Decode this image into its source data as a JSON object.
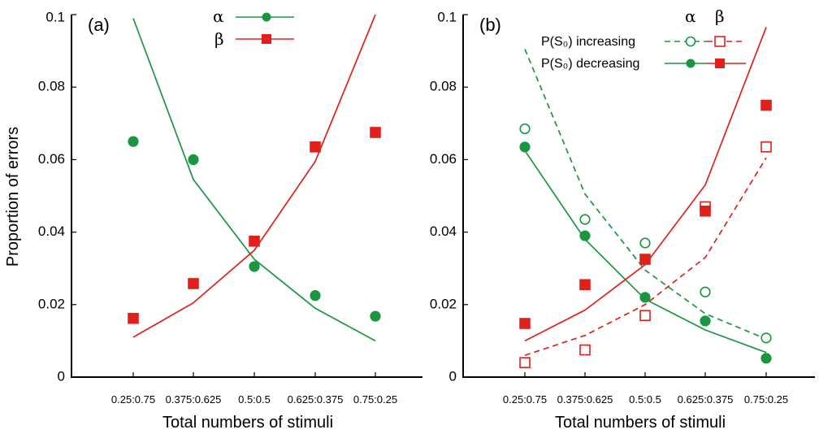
{
  "y_axis_title": "Proportion of errors",
  "y_tick_labels": [
    "0",
    "0.02",
    "0.04",
    "0.06",
    "0.08",
    "0.1"
  ],
  "colors": {
    "alpha": "#1a9640",
    "beta": "#e0201b"
  },
  "chart_data": [
    {
      "type": "line",
      "panel_label": "(a)",
      "xlabel": "Total numbers of stimuli",
      "ylabel": "Proportion of errors",
      "ylim": [
        0,
        0.1
      ],
      "categories": [
        "0.25:0.75",
        "0.375:0.625",
        "0.5:0.5",
        "0.625:0.375",
        "0.75:0.25"
      ],
      "legend": {
        "alpha": "α",
        "beta": "β",
        "placement": "top-center"
      },
      "series": [
        {
          "name": "α fit",
          "kind": "line",
          "style": "solid",
          "color": "alpha",
          "values": [
            0.099,
            0.0545,
            0.0325,
            0.019,
            0.01
          ]
        },
        {
          "name": "β fit",
          "kind": "line",
          "style": "solid",
          "color": "beta",
          "values": [
            0.011,
            0.0205,
            0.035,
            0.0595,
            0.1
          ]
        },
        {
          "name": "α data",
          "kind": "points",
          "marker": "circle",
          "filled": true,
          "color": "alpha",
          "values": [
            0.065,
            0.06,
            0.0305,
            0.0225,
            0.0168
          ]
        },
        {
          "name": "β data",
          "kind": "points",
          "marker": "square",
          "filled": true,
          "color": "beta",
          "values": [
            0.0162,
            0.0258,
            0.0375,
            0.0635,
            0.0675
          ]
        }
      ]
    },
    {
      "type": "line",
      "panel_label": "(b)",
      "xlabel": "Total numbers of stimuli",
      "ylabel": "Proportion of errors",
      "ylim": [
        0,
        0.1
      ],
      "categories": [
        "0.25:0.75",
        "0.375:0.625",
        "0.5:0.5",
        "0.625:0.375",
        "0.75:0.25"
      ],
      "legend": {
        "alpha": "α",
        "beta": "β",
        "increasing": "P(S₀) increasing",
        "decreasing": "P(S₀) decreasing",
        "placement": "top-center"
      },
      "series": [
        {
          "name": "α increasing fit",
          "kind": "line",
          "style": "dashed",
          "color": "alpha",
          "values": [
            0.0905,
            0.0505,
            0.0295,
            0.0175,
            0.0105
          ]
        },
        {
          "name": "β increasing fit",
          "kind": "line",
          "style": "dashed",
          "color": "beta",
          "values": [
            0.006,
            0.0115,
            0.02,
            0.033,
            0.0605
          ]
        },
        {
          "name": "α decreasing fit",
          "kind": "line",
          "style": "solid",
          "color": "alpha",
          "values": [
            0.0625,
            0.038,
            0.0215,
            0.013,
            0.0068
          ]
        },
        {
          "name": "β decreasing fit",
          "kind": "line",
          "style": "solid",
          "color": "beta",
          "values": [
            0.01,
            0.0185,
            0.031,
            0.053,
            0.0965
          ]
        },
        {
          "name": "α increasing data",
          "kind": "points",
          "marker": "circle",
          "filled": false,
          "color": "alpha",
          "values": [
            0.0685,
            0.0435,
            0.037,
            0.0235,
            0.0108
          ]
        },
        {
          "name": "β increasing data",
          "kind": "points",
          "marker": "square",
          "filled": false,
          "color": "beta",
          "values": [
            0.004,
            0.0075,
            0.017,
            0.047,
            0.0635
          ]
        },
        {
          "name": "α decreasing data",
          "kind": "points",
          "marker": "circle",
          "filled": true,
          "color": "alpha",
          "values": [
            0.0635,
            0.039,
            0.022,
            0.0155,
            0.0052
          ]
        },
        {
          "name": "β decreasing data",
          "kind": "points",
          "marker": "square",
          "filled": true,
          "color": "beta",
          "values": [
            0.0148,
            0.0255,
            0.0325,
            0.0458,
            0.075
          ]
        }
      ]
    }
  ]
}
